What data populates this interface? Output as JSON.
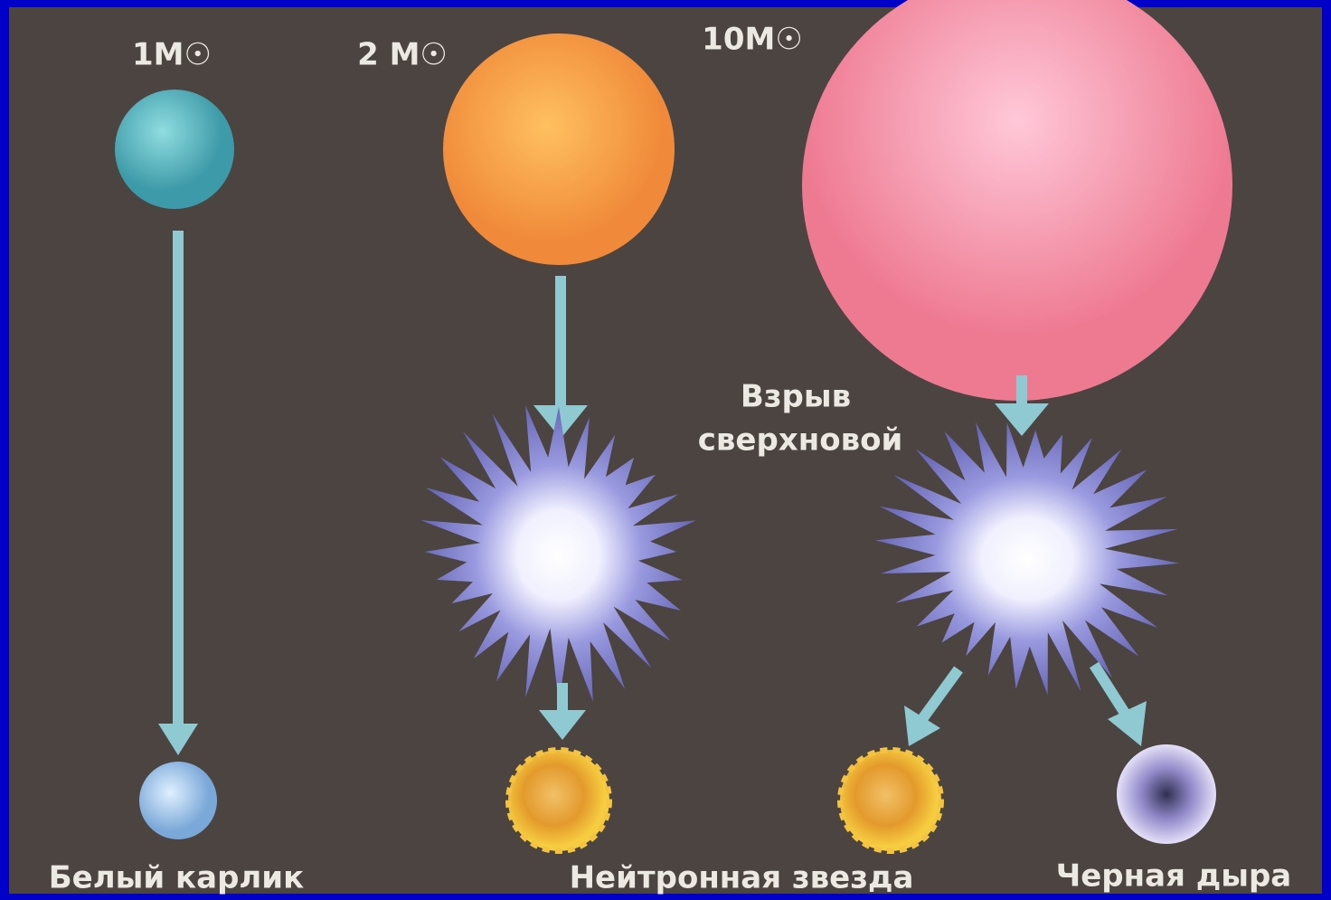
{
  "stars": [
    {
      "mass": "1M☉"
    },
    {
      "mass": "2 M☉"
    },
    {
      "mass": "10M☉"
    }
  ],
  "supernova_label": [
    "Взрыв",
    "сверхновой"
  ],
  "outcomes": [
    "Белый карлик",
    "Нейтронная звезда",
    "Черная дыра"
  ]
}
